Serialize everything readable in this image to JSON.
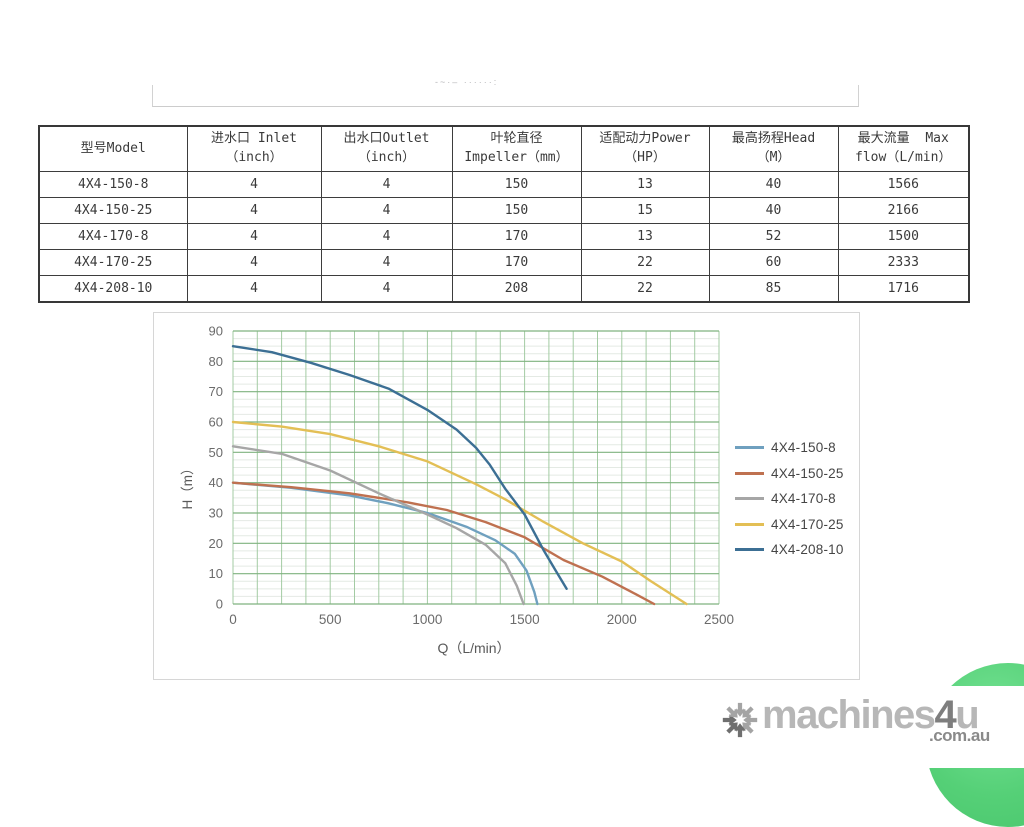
{
  "accent_colors": {
    "grid_major_green": "#7fb27f",
    "grid_vertical_green": "#a3cba3",
    "grid_minor": "#e4eae4",
    "axis_text": "#6b6b6b",
    "chat_green": "#55d077"
  },
  "table": {
    "columns": [
      {
        "l1": "型号Model",
        "l2": ""
      },
      {
        "l1": "进水口 Inlet",
        "l2": "（inch）"
      },
      {
        "l1": "出水口Outlet",
        "l2": "（inch）"
      },
      {
        "l1": "叶轮直径",
        "l2": "Impeller（mm）"
      },
      {
        "l1": "适配动力Power",
        "l2": "（HP）"
      },
      {
        "l1": "最高扬程Head",
        "l2": "（M）"
      },
      {
        "l1": "最大流量  Max",
        "l2": "flow（L/min）"
      }
    ],
    "rows": [
      [
        "4X4-150-8",
        "4",
        "4",
        "150",
        "13",
        "40",
        "1566"
      ],
      [
        "4X4-150-25",
        "4",
        "4",
        "150",
        "15",
        "40",
        "2166"
      ],
      [
        "4X4-170-8",
        "4",
        "4",
        "170",
        "13",
        "52",
        "1500"
      ],
      [
        "4X4-170-25",
        "4",
        "4",
        "170",
        "22",
        "60",
        "2333"
      ],
      [
        "4X4-208-10",
        "4",
        "4",
        "208",
        "22",
        "85",
        "1716"
      ]
    ]
  },
  "chart_data": {
    "type": "line",
    "title": "",
    "xlabel": "Q（L/min）",
    "ylabel": "H（m）",
    "xlim": [
      0,
      2500
    ],
    "ylim": [
      0,
      90
    ],
    "x_ticks": [
      0,
      500,
      1000,
      1500,
      2000,
      2500
    ],
    "y_ticks": [
      0,
      10,
      20,
      30,
      40,
      50,
      60,
      70,
      80,
      90
    ],
    "grid": {
      "on": true,
      "x_step": 125,
      "y_major_step": 10,
      "y_minor_step": 2.5
    },
    "legend_position": "right",
    "series": [
      {
        "name": "4X4-150-8",
        "color": "#6fa0bf",
        "points": [
          [
            0,
            40
          ],
          [
            300,
            38.3
          ],
          [
            600,
            35.8
          ],
          [
            800,
            33.2
          ],
          [
            1000,
            30
          ],
          [
            1200,
            25.5
          ],
          [
            1350,
            21
          ],
          [
            1450,
            16.5
          ],
          [
            1510,
            11
          ],
          [
            1550,
            4
          ],
          [
            1566,
            0
          ]
        ]
      },
      {
        "name": "4X4-150-25",
        "color": "#bf7150",
        "points": [
          [
            0,
            40
          ],
          [
            300,
            38.5
          ],
          [
            600,
            36.5
          ],
          [
            900,
            33.5
          ],
          [
            1100,
            31
          ],
          [
            1300,
            27
          ],
          [
            1500,
            22
          ],
          [
            1700,
            14.5
          ],
          [
            1900,
            9
          ],
          [
            2050,
            4
          ],
          [
            2166,
            0
          ]
        ]
      },
      {
        "name": "4X4-170-8",
        "color": "#a6a6a6",
        "points": [
          [
            0,
            52
          ],
          [
            250,
            49.5
          ],
          [
            500,
            44
          ],
          [
            750,
            36.5
          ],
          [
            1000,
            29.5
          ],
          [
            1150,
            25
          ],
          [
            1300,
            19.5
          ],
          [
            1400,
            13.5
          ],
          [
            1460,
            6
          ],
          [
            1495,
            0
          ]
        ]
      },
      {
        "name": "4X4-170-25",
        "color": "#e3bf55",
        "points": [
          [
            0,
            60
          ],
          [
            250,
            58.5
          ],
          [
            500,
            56
          ],
          [
            750,
            52
          ],
          [
            1000,
            47
          ],
          [
            1250,
            39.5
          ],
          [
            1400,
            34.5
          ],
          [
            1600,
            27
          ],
          [
            1800,
            20
          ],
          [
            2000,
            14
          ],
          [
            2150,
            7.5
          ],
          [
            2333,
            0
          ]
        ]
      },
      {
        "name": "4X4-208-10",
        "color": "#3c6f94",
        "points": [
          [
            0,
            85
          ],
          [
            200,
            83
          ],
          [
            400,
            79.5
          ],
          [
            600,
            75.5
          ],
          [
            800,
            71
          ],
          [
            1000,
            64
          ],
          [
            1150,
            57.5
          ],
          [
            1250,
            51.5
          ],
          [
            1320,
            46
          ],
          [
            1400,
            38
          ],
          [
            1500,
            29.5
          ],
          [
            1600,
            17.5
          ],
          [
            1660,
            11
          ],
          [
            1716,
            5
          ]
        ]
      }
    ]
  },
  "watermark": {
    "brand_machines": "machines",
    "brand_4": "4",
    "brand_u": "u",
    "domain": ".com.au"
  }
}
